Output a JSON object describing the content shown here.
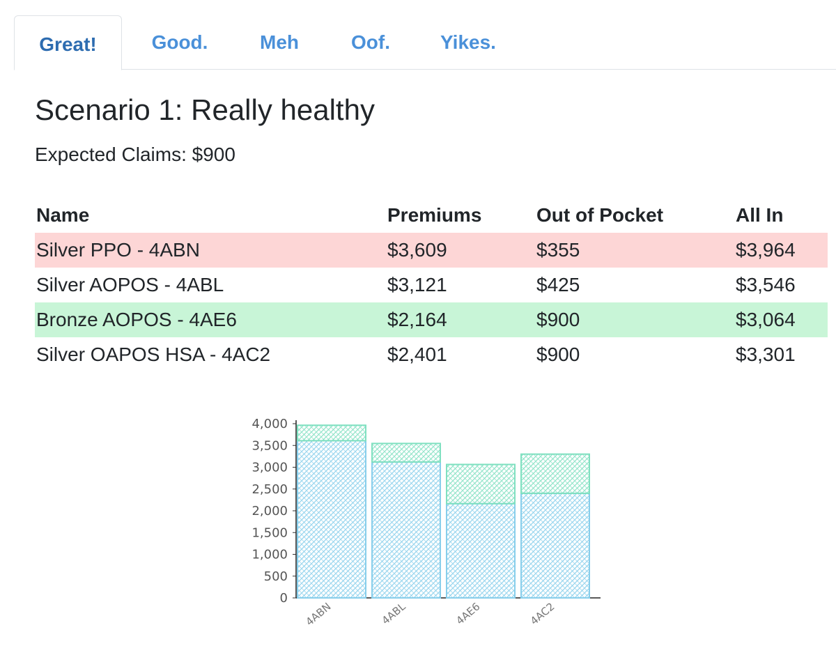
{
  "tabs": [
    {
      "label": "Great!",
      "active": true
    },
    {
      "label": "Good.",
      "active": false
    },
    {
      "label": "Meh",
      "active": false
    },
    {
      "label": "Oof.",
      "active": false
    },
    {
      "label": "Yikes.",
      "active": false
    }
  ],
  "scenario": {
    "title": "Scenario 1: Really healthy",
    "expected_claims": "Expected Claims: $900"
  },
  "table": {
    "headers": [
      "Name",
      "Premiums",
      "Out of Pocket",
      "All In"
    ],
    "rows": [
      {
        "name": "Silver PPO - 4ABN",
        "premiums": "$3,609",
        "oop": "$355",
        "all_in": "$3,964",
        "highlight": "worst"
      },
      {
        "name": "Silver AOPOS - 4ABL",
        "premiums": "$3,121",
        "oop": "$425",
        "all_in": "$3,546",
        "highlight": "none"
      },
      {
        "name": "Bronze AOPOS - 4AE6",
        "premiums": "$2,164",
        "oop": "$900",
        "all_in": "$3,064",
        "highlight": "best"
      },
      {
        "name": "Silver OAPOS HSA - 4AC2",
        "premiums": "$2,401",
        "oop": "$900",
        "all_in": "$3,301",
        "highlight": "none"
      }
    ]
  },
  "colors": {
    "worst_row": "#fdd6d6",
    "best_row": "#c8f5d7",
    "premiums_series": "#87ceeb",
    "oop_series": "#7fe0c0",
    "tab_text": "#4a90d9"
  },
  "chart_data": {
    "type": "bar",
    "stacked": true,
    "style": "hand-drawn sketch",
    "categories": [
      "4ABN",
      "4ABL",
      "4AE6",
      "4AC2"
    ],
    "series": [
      {
        "values": [
          3609,
          3121,
          2164,
          2401
        ]
      },
      {
        "values": [
          355,
          425,
          900,
          900
        ]
      }
    ],
    "ylim": [
      0,
      4000
    ],
    "yticks": [
      "0",
      "500",
      "1,000",
      "1,500",
      "2,000",
      "2,500",
      "3,000",
      "3,500",
      "4,000"
    ],
    "grid": false,
    "legend": "none"
  }
}
